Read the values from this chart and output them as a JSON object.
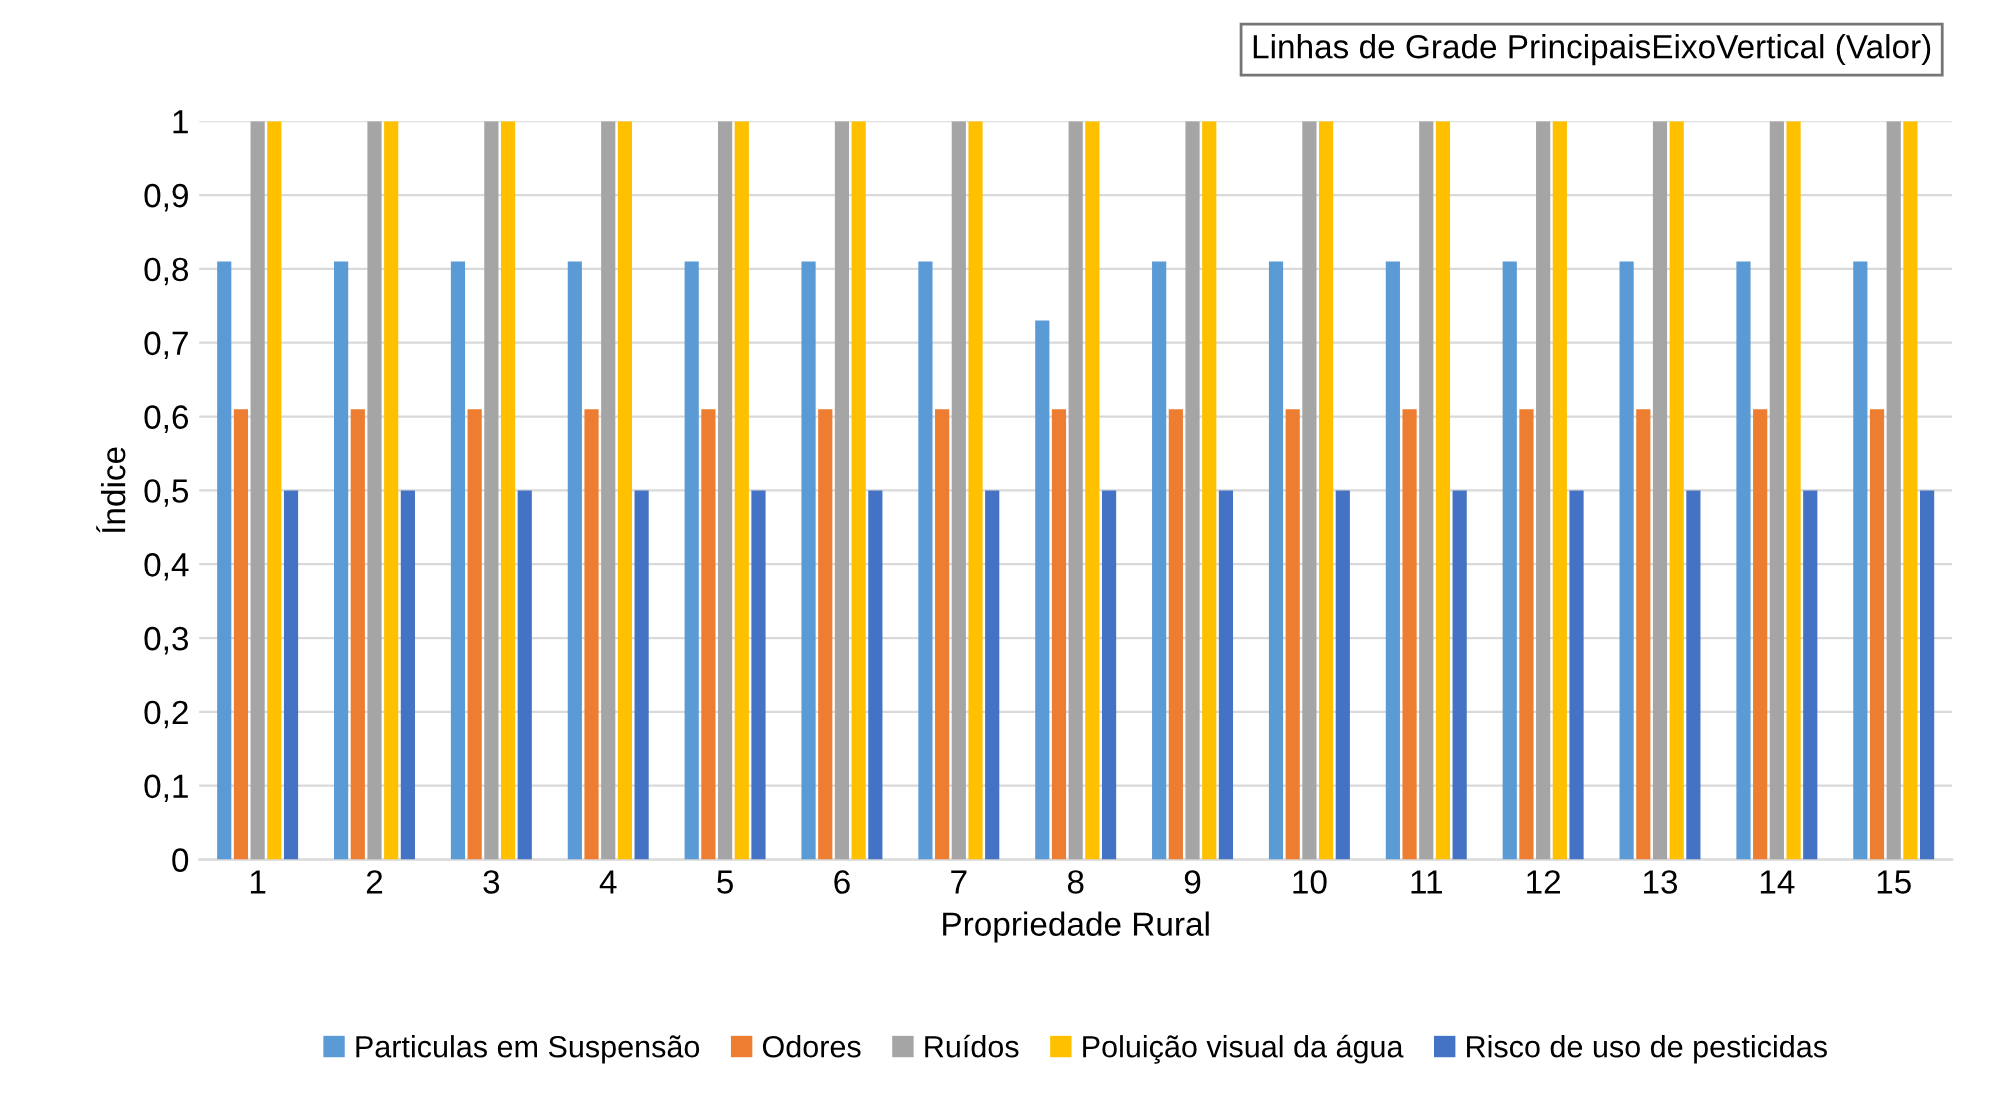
{
  "chart_data": {
    "type": "bar",
    "xlabel": "Propriedade Rural",
    "ylabel": "Índice",
    "categories": [
      "1",
      "2",
      "3",
      "4",
      "5",
      "6",
      "7",
      "8",
      "9",
      "10",
      "11",
      "12",
      "13",
      "14",
      "15"
    ],
    "series": [
      {
        "name": "Particulas em Suspensão",
        "color": "#5b9bd5",
        "values": [
          0.81,
          0.81,
          0.81,
          0.81,
          0.81,
          0.81,
          0.81,
          0.73,
          0.81,
          0.81,
          0.81,
          0.81,
          0.81,
          0.81,
          0.81
        ]
      },
      {
        "name": "Odores",
        "color": "#ed7d31",
        "values": [
          0.61,
          0.61,
          0.61,
          0.61,
          0.61,
          0.61,
          0.61,
          0.61,
          0.61,
          0.61,
          0.61,
          0.61,
          0.61,
          0.61,
          0.61
        ]
      },
      {
        "name": "Ruídos",
        "color": "#a5a5a5",
        "values": [
          1,
          1,
          1,
          1,
          1,
          1,
          1,
          1,
          1,
          1,
          1,
          1,
          1,
          1,
          1
        ]
      },
      {
        "name": "Poluição visual da água",
        "color": "#ffc000",
        "values": [
          1,
          1,
          1,
          1,
          1,
          1,
          1,
          1,
          1,
          1,
          1,
          1,
          1,
          1,
          1
        ]
      },
      {
        "name": "Risco de uso de pesticidas",
        "color": "#4472c4",
        "values": [
          0.5,
          0.5,
          0.5,
          0.5,
          0.5,
          0.5,
          0.5,
          0.5,
          0.5,
          0.5,
          0.5,
          0.5,
          0.5,
          0.5,
          0.5
        ]
      }
    ],
    "ylim": [
      0,
      1
    ],
    "yticks": [
      0,
      {
        "value": 0.1,
        "label": "0,1"
      },
      {
        "value": 0.2,
        "label": "0,2"
      },
      {
        "value": 0.3,
        "label": "0,3"
      },
      {
        "value": 0.4,
        "label": "0,4"
      },
      {
        "value": 0.5,
        "label": "0,5"
      },
      {
        "value": 0.6,
        "label": "0,6"
      },
      {
        "value": 0.7,
        "label": "0,7"
      },
      {
        "value": 0.8,
        "label": "0,8"
      },
      {
        "value": 0.9,
        "label": "0,9"
      },
      1
    ],
    "grid": "y",
    "legend": "bottom",
    "annotations": [
      "Linhas de Grade PrincipaisEixoVertical (Valor)"
    ]
  }
}
